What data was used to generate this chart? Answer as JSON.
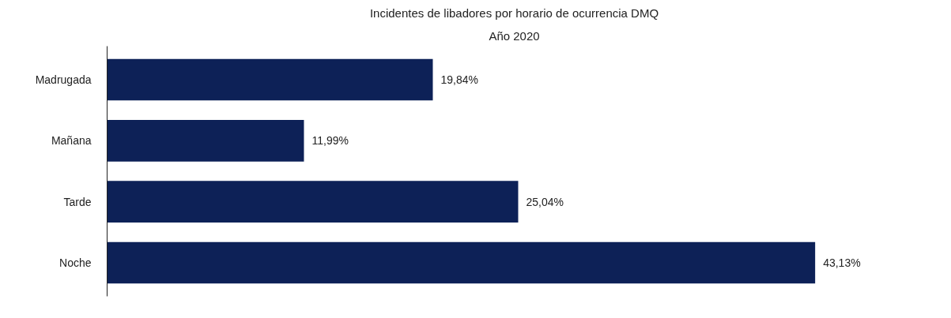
{
  "chart_data": {
    "type": "bar",
    "orientation": "horizontal",
    "title": "Incidentes de libadores por horario de ocurrencia DMQ",
    "subtitle": "Año 2020",
    "categories": [
      "Madrugada",
      "Mañana",
      "Tarde",
      "Noche"
    ],
    "values": [
      19.84,
      11.99,
      25.04,
      43.13
    ],
    "value_labels": [
      "19,84%",
      "11,99%",
      "25,04%",
      "43,13%"
    ],
    "color": "#0d2157",
    "tick_labels": "y",
    "grid": false
  }
}
